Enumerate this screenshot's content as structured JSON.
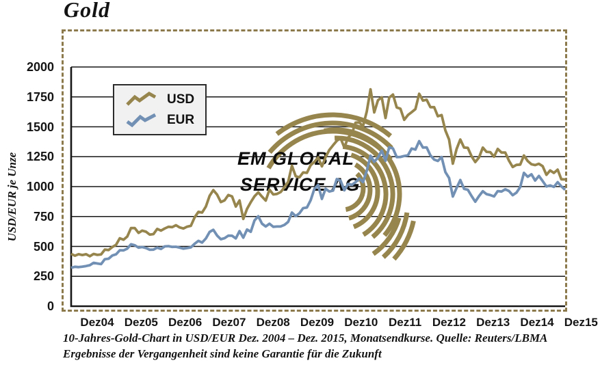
{
  "title": "Gold",
  "y_axis_title": "USD/EUR je Unze",
  "watermark": {
    "line1": "EM GLOBAL",
    "line2": "SERVICE AG",
    "logo": "concentric-arcs"
  },
  "captions": {
    "line1": "10-Jahres-Gold-Chart in USD/EUR  Dez. 2004 – Dez. 2015, Monatsendkurse. Quelle: Reuters/LBMA",
    "line2": "Ergebnisse der Vergangenheit sind keine Garantie für die Zukunft"
  },
  "colors": {
    "gold_line": "#97854E",
    "eur_line": "#7190B4",
    "frame_dash": "#8C7A4C",
    "grid": "#161616",
    "legend_bg": "#F1F1F1",
    "text": "#131313"
  },
  "legend": {
    "items": [
      "USD",
      "EUR"
    ]
  },
  "chart_data": {
    "type": "line",
    "title": "Gold",
    "xlabel": "",
    "ylabel": "USD/EUR je Unze",
    "ylim": [
      0,
      2000
    ],
    "grid": true,
    "legend_position": "upper-left",
    "y_ticks": [
      0,
      250,
      500,
      750,
      1000,
      1250,
      1500,
      1750,
      2000
    ],
    "x_tick_labels": [
      "Dez04",
      "Dez05",
      "Dez06",
      "Dez07",
      "Dez08",
      "Dez09",
      "Dez10",
      "Dez11",
      "Dez12",
      "Dez13",
      "Dez14",
      "Dez15"
    ],
    "x_range_note": "monatliche Werte Dez. 2004 bis Dez. 2015",
    "series": [
      {
        "name": "USD",
        "color": "#97854E",
        "values": [
          438,
          422,
          435,
          428,
          435,
          418,
          437,
          429,
          433,
          473,
          470,
          495,
          513,
          568,
          556,
          582,
          654,
          653,
          613,
          632,
          623,
          599,
          603,
          646,
          632,
          650,
          664,
          661,
          677,
          659,
          650,
          665,
          672,
          743,
          789,
          783,
          833,
          923,
          971,
          933,
          871,
          885,
          930,
          918,
          833,
          884,
          730,
          814,
          869,
          919,
          952,
          916,
          883,
          975,
          934,
          939,
          955,
          995,
          1040,
          1175,
          1087,
          1078,
          1118,
          1115,
          1179,
          1207,
          1244,
          1169,
          1246,
          1307,
          1346,
          1383,
          1405,
          1327,
          1411,
          1439,
          1535,
          1536,
          1505,
          1628,
          1813,
          1620,
          1722,
          1746,
          1574,
          1744,
          1770,
          1662,
          1651,
          1558,
          1598,
          1622,
          1648,
          1776,
          1719,
          1726,
          1664,
          1664,
          1588,
          1598,
          1469,
          1394,
          1192,
          1314,
          1394,
          1326,
          1324,
          1253,
          1205,
          1244,
          1326,
          1291,
          1288,
          1250,
          1315,
          1285,
          1285,
          1216,
          1164,
          1182,
          1184,
          1260,
          1214,
          1187,
          1180,
          1191,
          1171,
          1098,
          1135,
          1114,
          1142,
          1061,
          1060
        ]
      },
      {
        "name": "EUR",
        "color": "#7190B4",
        "values": [
          321,
          330,
          327,
          331,
          336,
          343,
          363,
          357,
          352,
          393,
          397,
          424,
          434,
          468,
          467,
          481,
          518,
          510,
          490,
          495,
          486,
          472,
          473,
          490,
          479,
          500,
          502,
          496,
          497,
          490,
          481,
          486,
          492,
          522,
          546,
          532,
          566,
          621,
          639,
          591,
          560,
          569,
          590,
          589,
          567,
          628,
          573,
          641,
          622,
          717,
          752,
          690,
          667,
          690,
          664,
          666,
          667,
          680,
          705,
          783,
          754,
          777,
          820,
          825,
          886,
          981,
          1014,
          897,
          982,
          959,
          967,
          1063,
          1050,
          969,
          1022,
          1015,
          1037,
          1068,
          1038,
          1132,
          1258,
          1207,
          1243,
          1302,
          1216,
          1329,
          1319,
          1246,
          1248,
          1256,
          1262,
          1318,
          1310,
          1380,
          1326,
          1328,
          1261,
          1226,
          1215,
          1247,
          1121,
          1072,
          917,
          989,
          1055,
          981,
          974,
          921,
          874,
          921,
          961,
          937,
          929,
          918,
          962,
          959,
          978,
          963,
          928,
          950,
          996,
          1115,
          1082,
          1103,
          1051,
          1089,
          1046,
          1001,
          1010,
          998,
          1037,
          1002,
          973
        ]
      }
    ]
  }
}
